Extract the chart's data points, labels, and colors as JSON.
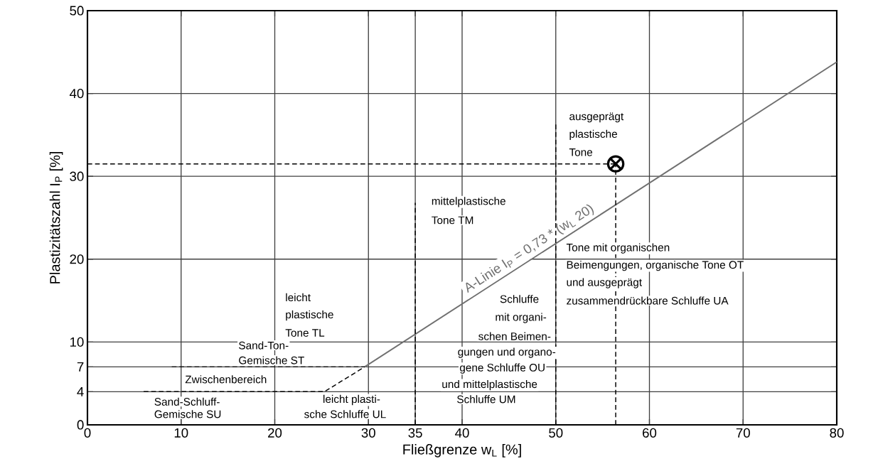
{
  "chart_data": {
    "type": "line",
    "xlabel": "Fließgrenze w$_{L}$ [%]",
    "ylabel": "Plastizitätszahl I$_{P}$ [%]",
    "xlim": [
      0,
      80
    ],
    "ylim": [
      0,
      50
    ],
    "xticks": [
      0,
      10,
      20,
      30,
      35,
      40,
      50,
      60,
      70,
      80
    ],
    "yticks": [
      0,
      4,
      7,
      10,
      20,
      30,
      40,
      50
    ],
    "grid": true,
    "series": [
      {
        "name": "A-Linie I$_{P}$ = 0,73 * (w$_{L}$ 20)",
        "color": "#707070",
        "line_style": "solid",
        "x": [
          29.6,
          80
        ],
        "values": [
          7,
          43.8
        ]
      },
      {
        "color": "#000000",
        "line_style": "dashed",
        "x": [
          9,
          29.6
        ],
        "values": [
          7,
          7
        ]
      },
      {
        "color": "#000000",
        "line_style": "dashed",
        "x": [
          6,
          25.3,
          29.6
        ],
        "values": [
          4,
          4,
          7
        ]
      },
      {
        "color": "#000000",
        "line_style": "dashed",
        "x": [
          35,
          35
        ],
        "values": [
          0,
          26.8
        ]
      },
      {
        "color": "#000000",
        "line_style": "dashed",
        "x": [
          50,
          50
        ],
        "values": [
          0,
          36.3
        ]
      },
      {
        "color": "#000000",
        "line_style": "dashed",
        "x": [
          56.4,
          56.4
        ],
        "values": [
          0,
          31.5
        ]
      },
      {
        "color": "#000000",
        "line_style": "dashed",
        "x": [
          0,
          56.4
        ],
        "values": [
          31.5,
          31.5
        ]
      },
      {
        "type": "scatter",
        "color": "#000000",
        "marker": "cross",
        "x": [
          56.4
        ],
        "values": [
          31.5
        ]
      }
    ],
    "annotations": [
      "ausgeprägt",
      "plastische",
      "Tone",
      "mittelplastische",
      "Tone TM",
      "Tone mit organischen",
      "Beimengungen, organische Tone OT",
      "und ausgeprägt",
      "zusammendrückbare Schluffe UA",
      "Schluffe",
      "mit organi-",
      "schen Beimen-",
      "gungen und organo-",
      "gene Schluffe OU",
      "und mittelplastische",
      "Schluffe UM",
      "leicht",
      "plastische",
      "Tone TL",
      "Sand-Ton-",
      "Gemische ST",
      "Zwischenbereich",
      "Sand-Schluff-",
      "Gemische SU",
      "leicht plasti-",
      "sche Schluffe UL"
    ]
  }
}
